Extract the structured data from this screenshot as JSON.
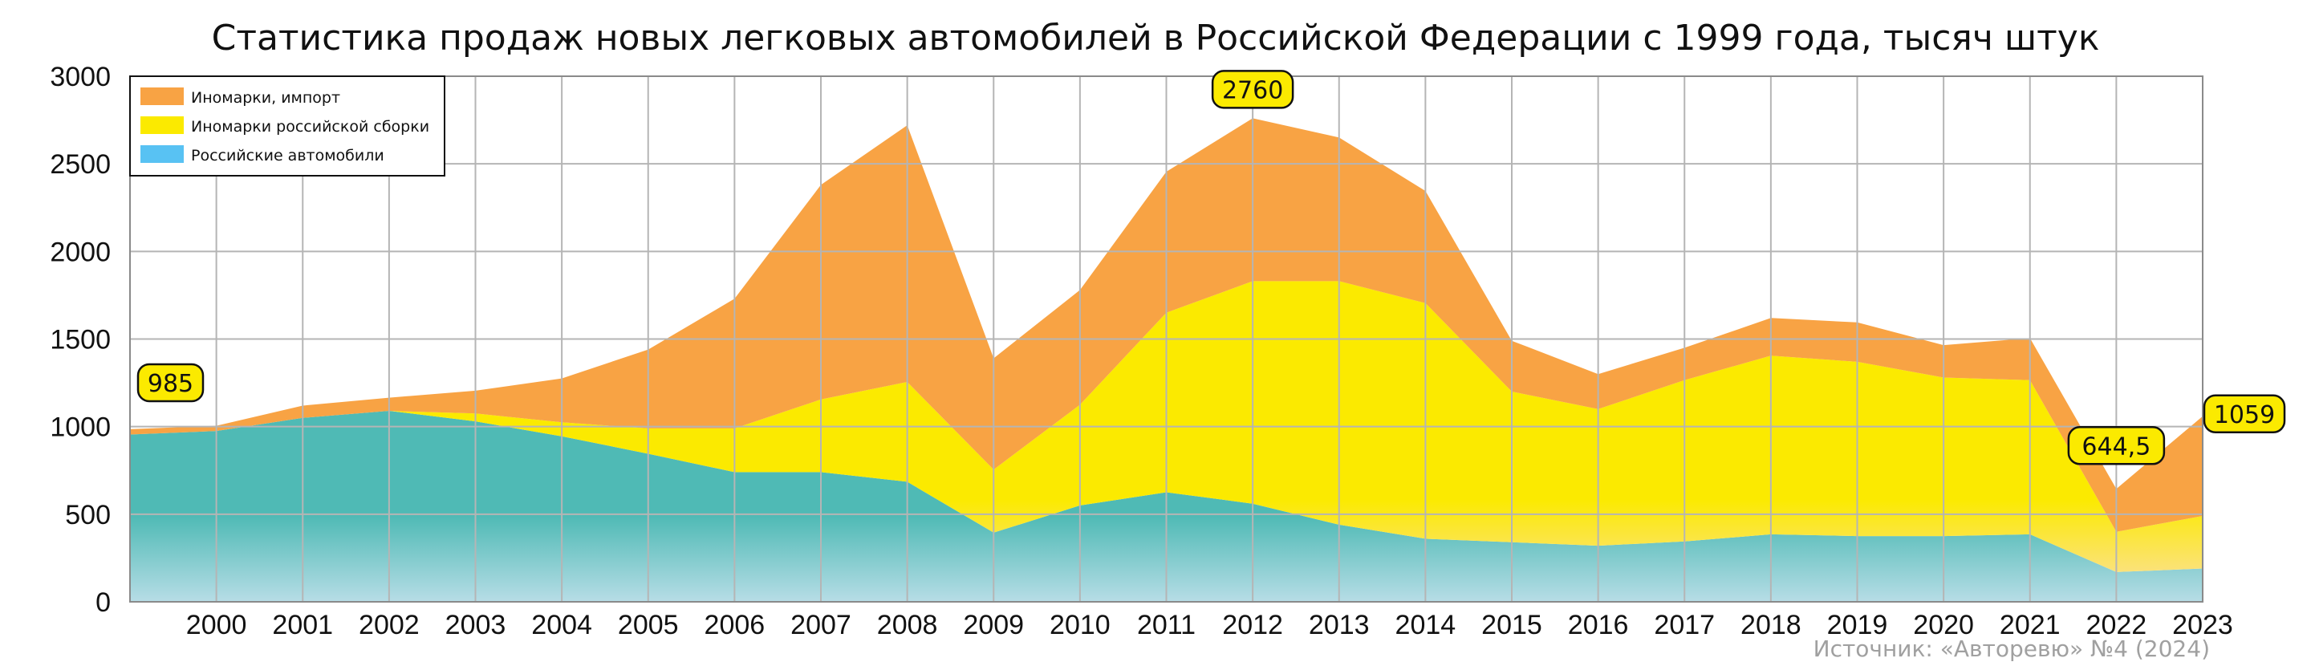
{
  "chart_data": {
    "type": "area",
    "title": "Статистика продаж новых легковых автомобилей в Российской Федерации с 1999 года, тысяч штук",
    "source": "Источник: «Авторевю» №4 (2024)",
    "x": [
      "1999",
      "2000",
      "2001",
      "2002",
      "2003",
      "2004",
      "2005",
      "2006",
      "2007",
      "2008",
      "2009",
      "2010",
      "2011",
      "2012",
      "2013",
      "2014",
      "2015",
      "2016",
      "2017",
      "2018",
      "2019",
      "2020",
      "2021",
      "2022",
      "2023"
    ],
    "x_tick_labels": [
      "2000",
      "2001",
      "2002",
      "2003",
      "2004",
      "2005",
      "2006",
      "2007",
      "2008",
      "2009",
      "2010",
      "2011",
      "2012",
      "2013",
      "2014",
      "2015",
      "2016",
      "2017",
      "2018",
      "2019",
      "2020",
      "2021",
      "2022",
      "2023"
    ],
    "stacked": true,
    "ylim": [
      0,
      3000
    ],
    "y_ticks": [
      0,
      500,
      1000,
      1500,
      2000,
      2500,
      3000
    ],
    "grid": true,
    "legend_position": "top-left",
    "series": [
      {
        "name": "Российские автомобили",
        "color": "#4fbab5",
        "values": [
          955,
          975,
          1050,
          1090,
          1030,
          945,
          845,
          740,
          740,
          685,
          395,
          550,
          625,
          560,
          440,
          360,
          340,
          320,
          345,
          385,
          375,
          375,
          385,
          170,
          190
        ]
      },
      {
        "name": "Иномарки российской сборки",
        "color": "#fbea00",
        "values": [
          0,
          0,
          0,
          0,
          45,
          80,
          145,
          250,
          415,
          570,
          360,
          575,
          1025,
          1270,
          1390,
          1345,
          860,
          780,
          920,
          1020,
          995,
          905,
          880,
          230,
          300
        ]
      },
      {
        "name": "Иномарки, импорт",
        "color": "#f8a344",
        "values": [
          30,
          30,
          70,
          75,
          130,
          250,
          450,
          740,
          1225,
          1465,
          635,
          655,
          805,
          930,
          820,
          640,
          290,
          200,
          185,
          215,
          225,
          185,
          240,
          245,
          569
        ]
      }
    ],
    "annotations": [
      {
        "label": "985",
        "x": "1999",
        "value": 985
      },
      {
        "label": "2760",
        "x": "2012",
        "value": 2760
      },
      {
        "label": "644,5",
        "x": "2022",
        "value": 644.5
      },
      {
        "label": "1059",
        "x": "2023",
        "value": 1059
      }
    ]
  }
}
